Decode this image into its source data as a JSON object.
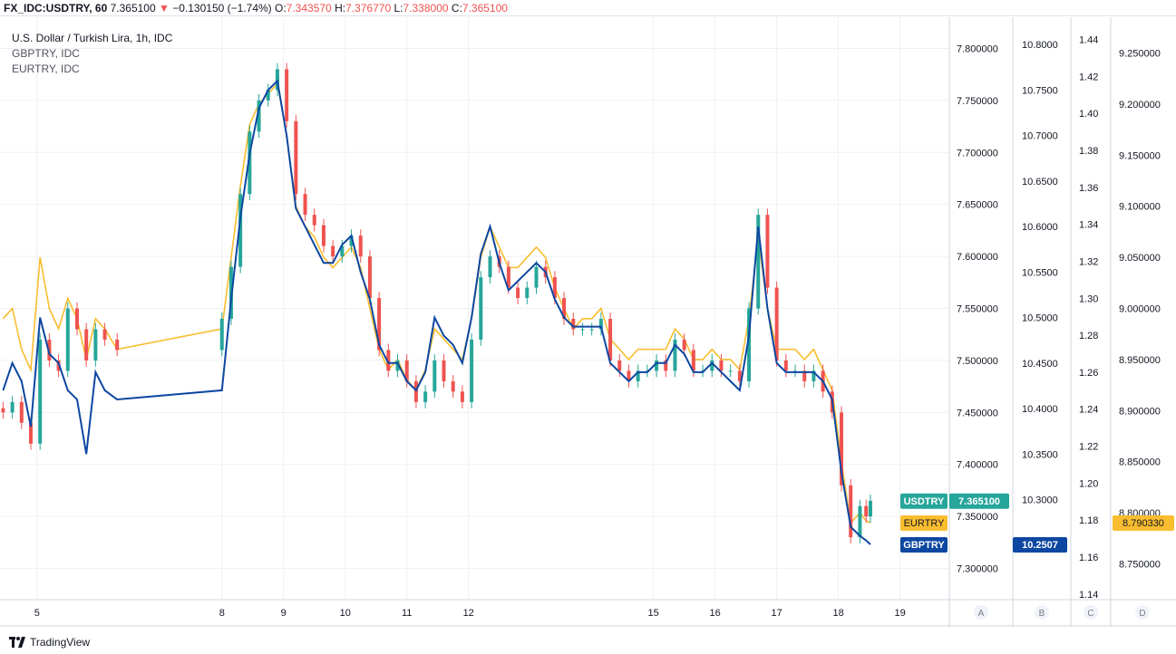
{
  "header": {
    "symbol": "FX_IDC:USDTRY, 60",
    "last": "7.365100",
    "change": "−0.130150 (−1.74%)",
    "o_label": "O:",
    "o_value": "7.343570",
    "h_label": "H:",
    "h_value": "7.376770",
    "l_label": "L:",
    "l_value": "7.338000",
    "c_label": "C:",
    "c_value": "7.365100",
    "down_arrow": "▼"
  },
  "legend": {
    "main": "U.S. Dollar / Turkish Lira, 1h, IDC",
    "s2": "GBPTRY, IDC",
    "s3": "EURTRY, IDC"
  },
  "footer": {
    "brand": "TradingView"
  },
  "colors": {
    "up": "#26a69a",
    "down": "#ef5350",
    "gbp": "#0d47a1",
    "eur": "#f9bd2f",
    "usd_tag": "#26a69a",
    "grid": "#eef0f3",
    "axis_text": "#131722"
  },
  "chart_data": {
    "type": "line",
    "x_ticks": [
      "5",
      "8",
      "9",
      "10",
      "11",
      "12",
      "15",
      "16",
      "17",
      "18",
      "19"
    ],
    "axis_letters": [
      "A",
      "B",
      "C",
      "D"
    ],
    "axis_A_ticks": [
      "7.800000",
      "7.750000",
      "7.700000",
      "7.650000",
      "7.600000",
      "7.550000",
      "7.500000",
      "7.450000",
      "7.400000",
      "7.350000",
      "7.300000"
    ],
    "axis_B_ticks": [
      "10.8000",
      "10.7500",
      "10.7000",
      "10.6500",
      "10.6000",
      "10.5500",
      "10.5000",
      "10.4500",
      "10.4000",
      "10.3500",
      "10.3000"
    ],
    "axis_C_ticks": [
      "1.44",
      "1.42",
      "1.40",
      "1.38",
      "1.36",
      "1.34",
      "1.32",
      "1.30",
      "1.28",
      "1.26",
      "1.24",
      "1.22",
      "1.20",
      "1.18",
      "1.16",
      "1.14"
    ],
    "axis_D_ticks": [
      "9.250000",
      "9.200000",
      "9.150000",
      "9.100000",
      "9.050000",
      "9.000000",
      "8.950000",
      "8.900000",
      "8.850000",
      "8.800000",
      "8.750000"
    ],
    "x_range": [
      4.4,
      19.8
    ],
    "usdtry_range": [
      7.27,
      7.83
    ],
    "gbptry_range": [
      10.19,
      10.83
    ],
    "eurtry_range": [
      8.715,
      9.285
    ],
    "series": [
      {
        "name": "USDTRY",
        "style": "candles",
        "x": [
          4.45,
          4.6,
          4.75,
          4.9,
          5.05,
          5.2,
          5.35,
          5.5,
          5.65,
          5.8,
          5.95,
          6.1,
          6.3,
          8.0,
          8.15,
          8.3,
          8.45,
          8.6,
          8.75,
          8.9,
          9.05,
          9.2,
          9.35,
          9.5,
          9.65,
          9.8,
          9.95,
          10.1,
          10.25,
          10.4,
          10.55,
          10.7,
          10.85,
          11.0,
          11.15,
          11.3,
          11.45,
          11.6,
          11.75,
          11.9,
          12.05,
          12.2,
          12.35,
          12.5,
          12.65,
          12.8,
          12.95,
          13.1,
          13.25,
          13.4,
          13.55,
          13.7,
          13.85,
          14.0,
          14.15,
          14.3,
          14.45,
          14.6,
          14.75,
          14.9,
          15.05,
          15.2,
          15.35,
          15.5,
          15.65,
          15.8,
          15.95,
          16.1,
          16.25,
          16.4,
          16.55,
          16.7,
          16.85,
          17.0,
          17.15,
          17.3,
          17.45,
          17.6,
          17.75,
          17.9,
          18.05,
          18.2,
          18.35,
          18.45,
          18.52
        ],
        "values": [
          7.45,
          7.46,
          7.44,
          7.42,
          7.52,
          7.5,
          7.49,
          7.55,
          7.53,
          7.5,
          7.53,
          7.52,
          7.51,
          7.54,
          7.59,
          7.66,
          7.72,
          7.75,
          7.76,
          7.78,
          7.73,
          7.66,
          7.64,
          7.63,
          7.61,
          7.6,
          7.61,
          7.62,
          7.6,
          7.56,
          7.51,
          7.49,
          7.5,
          7.48,
          7.46,
          7.47,
          7.5,
          7.48,
          7.47,
          7.46,
          7.52,
          7.58,
          7.6,
          7.59,
          7.57,
          7.56,
          7.57,
          7.59,
          7.58,
          7.56,
          7.54,
          7.53,
          7.53,
          7.53,
          7.54,
          7.5,
          7.49,
          7.48,
          7.49,
          7.49,
          7.5,
          7.49,
          7.52,
          7.51,
          7.49,
          7.49,
          7.5,
          7.49,
          7.49,
          7.48,
          7.55,
          7.64,
          7.57,
          7.5,
          7.49,
          7.49,
          7.48,
          7.49,
          7.47,
          7.45,
          7.38,
          7.33,
          7.36,
          7.35,
          7.3651
        ]
      },
      {
        "name": "GBPTRY",
        "style": "line",
        "x": [
          4.45,
          4.6,
          4.75,
          4.9,
          5.05,
          5.2,
          5.35,
          5.5,
          5.65,
          5.8,
          5.95,
          6.1,
          6.3,
          8.0,
          8.15,
          8.3,
          8.45,
          8.6,
          8.75,
          8.9,
          9.05,
          9.2,
          9.35,
          9.5,
          9.65,
          9.8,
          9.95,
          10.1,
          10.25,
          10.4,
          10.55,
          10.7,
          10.85,
          11.0,
          11.15,
          11.3,
          11.45,
          11.6,
          11.75,
          11.9,
          12.05,
          12.2,
          12.35,
          12.5,
          12.65,
          12.8,
          12.95,
          13.1,
          13.25,
          13.4,
          13.55,
          13.7,
          13.85,
          14.0,
          14.15,
          14.3,
          14.45,
          14.6,
          14.75,
          14.9,
          15.05,
          15.2,
          15.35,
          15.5,
          15.65,
          15.8,
          15.95,
          16.1,
          16.25,
          16.4,
          16.55,
          16.7,
          16.85,
          17.0,
          17.15,
          17.3,
          17.45,
          17.6,
          17.75,
          17.9,
          18.05,
          18.2,
          18.35,
          18.45,
          18.52
        ],
        "values": [
          10.42,
          10.45,
          10.43,
          10.38,
          10.5,
          10.46,
          10.45,
          10.42,
          10.41,
          10.35,
          10.44,
          10.42,
          10.41,
          10.42,
          10.52,
          10.61,
          10.68,
          10.73,
          10.75,
          10.76,
          10.7,
          10.62,
          10.6,
          10.58,
          10.56,
          10.56,
          10.58,
          10.59,
          10.55,
          10.52,
          10.47,
          10.45,
          10.45,
          10.43,
          10.42,
          10.44,
          10.5,
          10.48,
          10.47,
          10.45,
          10.5,
          10.57,
          10.6,
          10.56,
          10.53,
          10.54,
          10.55,
          10.56,
          10.55,
          10.52,
          10.5,
          10.49,
          10.49,
          10.49,
          10.49,
          10.45,
          10.44,
          10.43,
          10.44,
          10.44,
          10.45,
          10.45,
          10.47,
          10.46,
          10.44,
          10.44,
          10.45,
          10.44,
          10.43,
          10.42,
          10.48,
          10.6,
          10.51,
          10.45,
          10.44,
          10.44,
          10.44,
          10.44,
          10.43,
          10.41,
          10.33,
          10.27,
          10.26,
          10.255,
          10.2507
        ]
      },
      {
        "name": "EURTRY",
        "style": "line",
        "x": [
          4.45,
          4.6,
          4.75,
          4.9,
          5.05,
          5.2,
          5.35,
          5.5,
          5.65,
          5.8,
          5.95,
          6.1,
          6.3,
          8.0,
          8.15,
          8.3,
          8.45,
          8.6,
          8.75,
          8.9,
          9.05,
          9.2,
          9.35,
          9.5,
          9.65,
          9.8,
          9.95,
          10.1,
          10.25,
          10.4,
          10.55,
          10.7,
          10.85,
          11.0,
          11.15,
          11.3,
          11.45,
          11.6,
          11.75,
          11.9,
          12.05,
          12.2,
          12.35,
          12.5,
          12.65,
          12.8,
          12.95,
          13.1,
          13.25,
          13.4,
          13.55,
          13.7,
          13.85,
          14.0,
          14.15,
          14.3,
          14.45,
          14.6,
          14.75,
          14.9,
          15.05,
          15.2,
          15.35,
          15.5,
          15.65,
          15.8,
          15.95,
          16.1,
          16.25,
          16.4,
          16.55,
          16.7,
          16.85,
          17.0,
          17.15,
          17.3,
          17.45,
          17.6,
          17.75,
          17.9,
          18.05,
          18.2,
          18.35,
          18.45,
          18.52
        ],
        "values": [
          8.99,
          9.0,
          8.96,
          8.94,
          9.05,
          9.0,
          8.98,
          9.01,
          8.99,
          8.95,
          8.99,
          8.98,
          8.96,
          8.98,
          9.05,
          9.12,
          9.18,
          9.2,
          9.21,
          9.22,
          9.17,
          9.1,
          9.08,
          9.07,
          9.05,
          9.04,
          9.05,
          9.06,
          9.04,
          9.0,
          8.96,
          8.94,
          8.95,
          8.93,
          8.92,
          8.94,
          8.98,
          8.97,
          8.96,
          8.95,
          8.99,
          9.05,
          9.08,
          9.06,
          9.04,
          9.04,
          9.05,
          9.06,
          9.05,
          9.02,
          9.0,
          8.98,
          8.99,
          8.99,
          9.0,
          8.97,
          8.96,
          8.95,
          8.96,
          8.96,
          8.96,
          8.96,
          8.98,
          8.97,
          8.95,
          8.95,
          8.96,
          8.95,
          8.95,
          8.94,
          8.99,
          9.07,
          9.0,
          8.96,
          8.96,
          8.96,
          8.95,
          8.96,
          8.94,
          8.92,
          8.85,
          8.79,
          8.8,
          8.792,
          8.79033
        ]
      }
    ],
    "last_labels": {
      "usdtry_name": "USDTRY",
      "usdtry_value": "7.365100",
      "eurtry_name": "EURTRY",
      "eurtry_value": "8.790330",
      "gbptry_name": "GBPTRY",
      "gbptry_value": "10.2507"
    },
    "grid": true
  }
}
